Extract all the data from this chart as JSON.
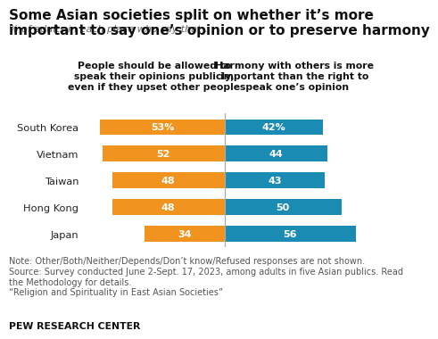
{
  "title_line1": "Some Asian societies split on whether it’s more",
  "title_line2": "important to say one’s opinion or to preserve harmony",
  "subtitle": "% of adults in each place who say that …",
  "col_header_left": "People should be allowed to\nspeak their opinions publicly,\neven if they upset other people",
  "col_header_right": "Harmony with others is more\nimportant than the right to\nspeak one’s opinion",
  "countries": [
    "South Korea",
    "Vietnam",
    "Taiwan",
    "Hong Kong",
    "Japan"
  ],
  "opinion_values": [
    53,
    52,
    48,
    48,
    34
  ],
  "harmony_values": [
    42,
    44,
    43,
    50,
    56
  ],
  "opinion_labels": [
    "53%",
    "52",
    "48",
    "48",
    "34"
  ],
  "harmony_labels": [
    "42%",
    "44",
    "43",
    "50",
    "56"
  ],
  "opinion_color": "#F0941F",
  "harmony_color": "#1A8CB3",
  "divider_color": "#AAAAAA",
  "background_color": "#FFFFFF",
  "note_line1": "Note: Other/Both/Neither/Depends/Don’t know/Refused responses are not shown.",
  "note_line2": "Source: Survey conducted June 2-Sept. 17, 2023, among adults in five Asian publics. Read",
  "note_line3": "the Methodology for details.",
  "note_line4": "“Religion and Spirituality in East Asian Societies”",
  "footer": "PEW RESEARCH CENTER",
  "title_fontsize": 11.0,
  "subtitle_fontsize": 8.0,
  "header_fontsize": 7.8,
  "bar_label_fontsize": 8.0,
  "country_fontsize": 8.2,
  "note_fontsize": 7.0,
  "footer_fontsize": 7.8,
  "max_val": 60
}
